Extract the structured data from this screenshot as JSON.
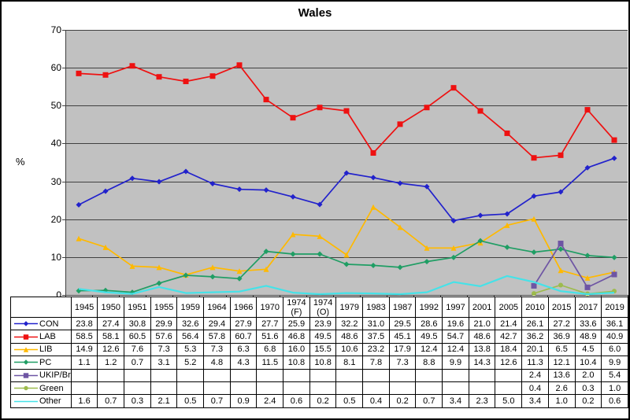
{
  "window": {
    "background": "#FFFFFF",
    "border_color": "#000000"
  },
  "chart_data": {
    "type": "line",
    "title": "Wales",
    "ylabel": "%",
    "ylim": [
      0,
      70
    ],
    "y_tick_step": 10,
    "y_ticks": [
      0,
      10,
      20,
      30,
      40,
      50,
      60,
      70
    ],
    "grid": "horizontal",
    "plot_background": "#C1C1C1",
    "grid_color": "#404040",
    "legend_position": "table-left",
    "categories": [
      "1945",
      "1950",
      "1951",
      "1955",
      "1959",
      "1964",
      "1966",
      "1970",
      "1974\n(F)",
      "1974\n(O)",
      "1979",
      "1983",
      "1987",
      "1992",
      "1997",
      "2001",
      "2005",
      "2010",
      "2015",
      "2017",
      "2019"
    ],
    "series": [
      {
        "name": "CON",
        "color": "#2222CC",
        "marker": "diamond",
        "values": [
          23.8,
          27.4,
          30.8,
          29.9,
          32.6,
          29.4,
          27.9,
          27.7,
          25.9,
          23.9,
          32.2,
          31.0,
          29.5,
          28.6,
          19.6,
          21.0,
          21.4,
          26.1,
          27.2,
          33.6,
          36.1
        ]
      },
      {
        "name": "LAB",
        "color": "#EE1111",
        "marker": "square",
        "values": [
          58.5,
          58.1,
          60.5,
          57.6,
          56.4,
          57.8,
          60.7,
          51.6,
          46.8,
          49.5,
          48.6,
          37.5,
          45.1,
          49.5,
          54.7,
          48.6,
          42.7,
          36.2,
          36.9,
          48.9,
          40.9
        ]
      },
      {
        "name": "LIB",
        "color": "#FFB900",
        "marker": "triangle",
        "values": [
          14.9,
          12.6,
          7.6,
          7.3,
          5.3,
          7.3,
          6.3,
          6.8,
          16.0,
          15.5,
          10.6,
          23.2,
          17.9,
          12.4,
          12.4,
          13.8,
          18.4,
          20.1,
          6.5,
          4.5,
          6.0
        ]
      },
      {
        "name": "PC",
        "color": "#1F9E64",
        "marker": "diamond",
        "values": [
          1.1,
          1.2,
          0.7,
          3.1,
          5.2,
          4.8,
          4.3,
          11.5,
          10.8,
          10.8,
          8.1,
          7.8,
          7.3,
          8.8,
          9.9,
          14.3,
          12.6,
          11.3,
          12.1,
          10.4,
          9.9
        ]
      },
      {
        "name": "UKIP/Br",
        "color": "#6E55A4",
        "marker": "square",
        "values": [
          null,
          null,
          null,
          null,
          null,
          null,
          null,
          null,
          null,
          null,
          null,
          null,
          null,
          null,
          null,
          null,
          null,
          2.4,
          13.6,
          2.0,
          5.4
        ]
      },
      {
        "name": "Green",
        "color": "#9DBB4D",
        "marker": "circle",
        "values": [
          null,
          null,
          null,
          null,
          null,
          null,
          null,
          null,
          null,
          null,
          null,
          null,
          null,
          null,
          null,
          null,
          null,
          0.4,
          2.6,
          0.3,
          1.0
        ]
      },
      {
        "name": "Other",
        "color": "#45E2E8",
        "marker": "none",
        "values": [
          1.6,
          0.7,
          0.3,
          2.1,
          0.5,
          0.7,
          0.9,
          2.4,
          0.6,
          0.2,
          0.5,
          0.4,
          0.2,
          0.7,
          3.4,
          2.3,
          5.0,
          3.4,
          1.0,
          0.2,
          0.6
        ]
      }
    ]
  }
}
